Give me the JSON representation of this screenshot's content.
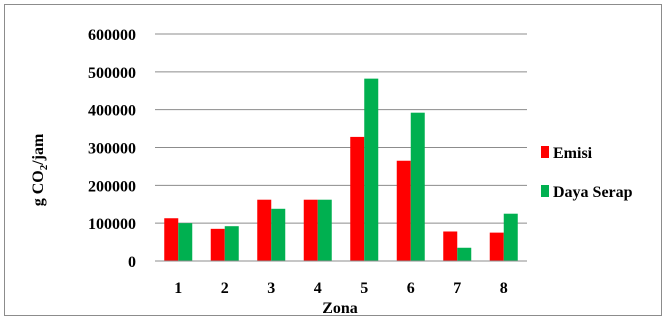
{
  "chart_data": {
    "type": "bar",
    "xlabel": "Zona",
    "ylabel_main": "g CO",
    "ylabel_sub": "2",
    "ylabel_tail": "/jam",
    "categories": [
      "1",
      "2",
      "3",
      "4",
      "5",
      "6",
      "7",
      "8"
    ],
    "series": [
      {
        "name": "Emisi",
        "color": "#ff0000",
        "values": [
          113000,
          85000,
          162000,
          162000,
          328000,
          265000,
          78000,
          75000
        ]
      },
      {
        "name": "Daya Serap",
        "color": "#00b050",
        "values": [
          100000,
          92000,
          138000,
          162000,
          482000,
          392000,
          35000,
          125000
        ]
      }
    ],
    "ylim": [
      0,
      600000
    ],
    "yticks": [
      "0",
      "100000",
      "200000",
      "300000",
      "400000",
      "500000",
      "600000"
    ],
    "grid": "horizontal",
    "legend_position": "right"
  }
}
